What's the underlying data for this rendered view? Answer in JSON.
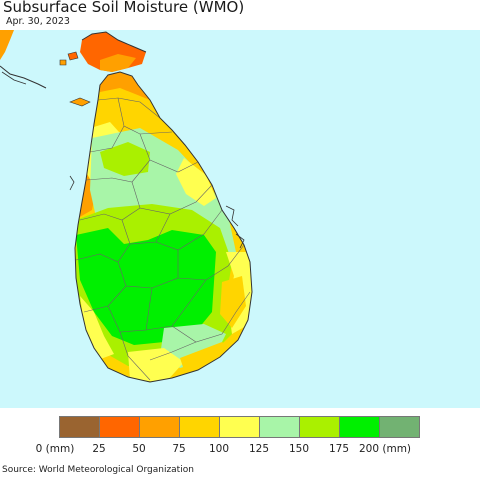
{
  "header": {
    "title": "Subsurface Soil Moisture (WMO)",
    "date": "Apr. 30, 2023"
  },
  "map": {
    "ocean_color": "#ccf8fc",
    "boundary_color": "#666666"
  },
  "legend": {
    "colors": [
      "#9a6430",
      "#ff6600",
      "#ffa000",
      "#ffd500",
      "#ffff50",
      "#a8f5a8",
      "#aaf000",
      "#00f000",
      "#72b272"
    ],
    "tick_labels": [
      "0 (mm)",
      "25",
      "50",
      "75",
      "100",
      "125",
      "150",
      "175",
      "200 (mm)"
    ]
  },
  "footer": {
    "source": "Source: World Meteorological Organization"
  }
}
